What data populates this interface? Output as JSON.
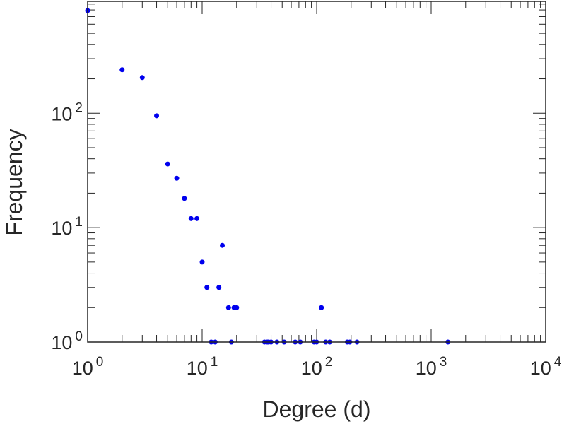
{
  "chart_data": {
    "type": "scatter",
    "title": "",
    "xlabel": "Degree (d)",
    "ylabel": "Frequency",
    "xscale": "log",
    "yscale": "log",
    "xlim": [
      1,
      10000
    ],
    "ylim": [
      1,
      950
    ],
    "grid": false,
    "marker_color": "#0000ee",
    "axis_color": "#262626",
    "x_ticks": [
      {
        "base": "10",
        "exp": "0"
      },
      {
        "base": "10",
        "exp": "1"
      },
      {
        "base": "10",
        "exp": "2"
      },
      {
        "base": "10",
        "exp": "3"
      },
      {
        "base": "10",
        "exp": "4"
      }
    ],
    "y_ticks": [
      {
        "base": "10",
        "exp": "0"
      },
      {
        "base": "10",
        "exp": "1"
      },
      {
        "base": "10",
        "exp": "2"
      }
    ],
    "series": [
      {
        "points": [
          [
            1,
            790
          ],
          [
            2,
            240
          ],
          [
            3,
            205
          ],
          [
            4,
            95
          ],
          [
            5,
            36
          ],
          [
            6,
            27
          ],
          [
            7,
            18
          ],
          [
            8,
            12
          ],
          [
            9,
            12
          ],
          [
            10,
            5
          ],
          [
            11,
            3
          ],
          [
            14,
            3
          ],
          [
            15,
            7
          ],
          [
            17,
            2
          ],
          [
            19,
            2
          ],
          [
            20,
            2
          ],
          [
            110,
            2
          ],
          [
            12,
            1
          ],
          [
            13,
            1
          ],
          [
            18,
            1
          ],
          [
            35,
            1
          ],
          [
            37,
            1
          ],
          [
            38,
            1
          ],
          [
            40,
            1
          ],
          [
            45,
            1
          ],
          [
            52,
            1
          ],
          [
            65,
            1
          ],
          [
            72,
            1
          ],
          [
            95,
            1
          ],
          [
            100,
            1
          ],
          [
            120,
            1
          ],
          [
            130,
            1
          ],
          [
            185,
            1
          ],
          [
            195,
            1
          ],
          [
            225,
            1
          ],
          [
            1400,
            1
          ]
        ]
      }
    ]
  }
}
